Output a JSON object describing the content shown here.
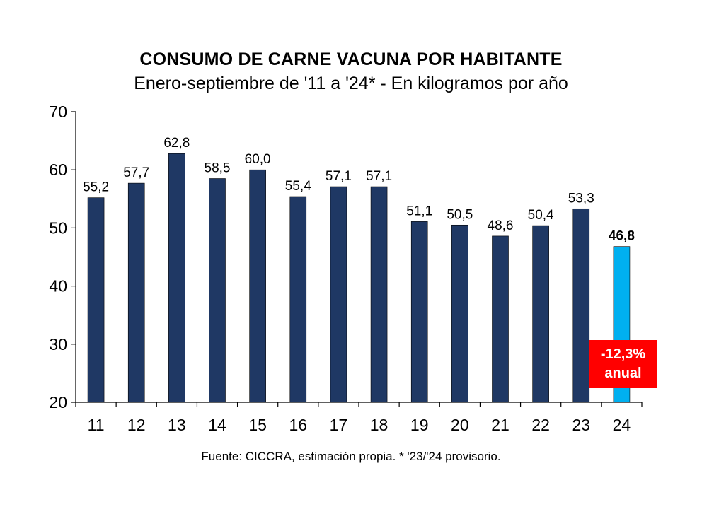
{
  "chart_data": {
    "type": "bar",
    "title": "CONSUMO DE CARNE VACUNA POR HABITANTE",
    "subtitle": "Enero-septiembre de '11 a '24* - En kilogramos por año",
    "categories": [
      "11",
      "12",
      "13",
      "14",
      "15",
      "16",
      "17",
      "18",
      "19",
      "20",
      "21",
      "22",
      "23",
      "24"
    ],
    "values": [
      55.2,
      57.7,
      62.8,
      58.5,
      60.0,
      55.4,
      57.1,
      57.1,
      51.1,
      50.5,
      48.6,
      50.4,
      53.3,
      46.8
    ],
    "value_labels": [
      "55,2",
      "57,7",
      "62,8",
      "58,5",
      "60,0",
      "55,4",
      "57,1",
      "57,1",
      "51,1",
      "50,5",
      "48,6",
      "50,4",
      "53,3",
      "46,8"
    ],
    "highlight_index": 13,
    "ylim": [
      20,
      70
    ],
    "yticks": [
      "20",
      "30",
      "40",
      "50",
      "60",
      "70"
    ],
    "xlabel": "",
    "ylabel": "",
    "colors": {
      "bar": "#1f3864",
      "highlight": "#00b0f0",
      "annotation_bg": "#ff0000",
      "annotation_text": "#ffffff"
    },
    "annotation": {
      "line1": "-12,3%",
      "line2": "anual"
    },
    "source": "Fuente: CICCRA, estimación propia. * '23/'24 provisorio."
  }
}
